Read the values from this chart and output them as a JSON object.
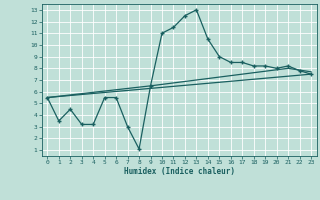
{
  "xlabel": "Humidex (Indice chaleur)",
  "bg_color": "#c0e0d8",
  "line_color": "#1a6060",
  "grid_color": "#ffffff",
  "xlim": [
    -0.5,
    23.5
  ],
  "ylim": [
    0.5,
    13.5
  ],
  "xticks": [
    0,
    1,
    2,
    3,
    4,
    5,
    6,
    7,
    8,
    9,
    10,
    11,
    12,
    13,
    14,
    15,
    16,
    17,
    18,
    19,
    20,
    21,
    22,
    23
  ],
  "yticks": [
    1,
    2,
    3,
    4,
    5,
    6,
    7,
    8,
    9,
    10,
    11,
    12,
    13
  ],
  "line1_x": [
    0,
    1,
    2,
    3,
    4,
    5,
    6,
    7,
    8,
    9,
    10,
    11,
    12,
    13,
    14,
    15,
    16,
    17,
    18,
    19,
    20,
    21,
    22,
    23
  ],
  "line1_y": [
    5.5,
    3.5,
    4.5,
    3.2,
    3.2,
    5.5,
    5.5,
    3.0,
    1.1,
    6.5,
    11.0,
    11.5,
    12.5,
    13.0,
    10.5,
    9.0,
    8.5,
    8.5,
    8.2,
    8.2,
    8.0,
    8.2,
    7.8,
    7.5
  ],
  "line2_x": [
    0,
    23
  ],
  "line2_y": [
    5.5,
    7.5
  ],
  "line3_x": [
    0,
    9,
    21,
    23
  ],
  "line3_y": [
    5.5,
    6.5,
    8.0,
    7.7
  ],
  "markersize": 2.5,
  "linewidth": 0.9
}
